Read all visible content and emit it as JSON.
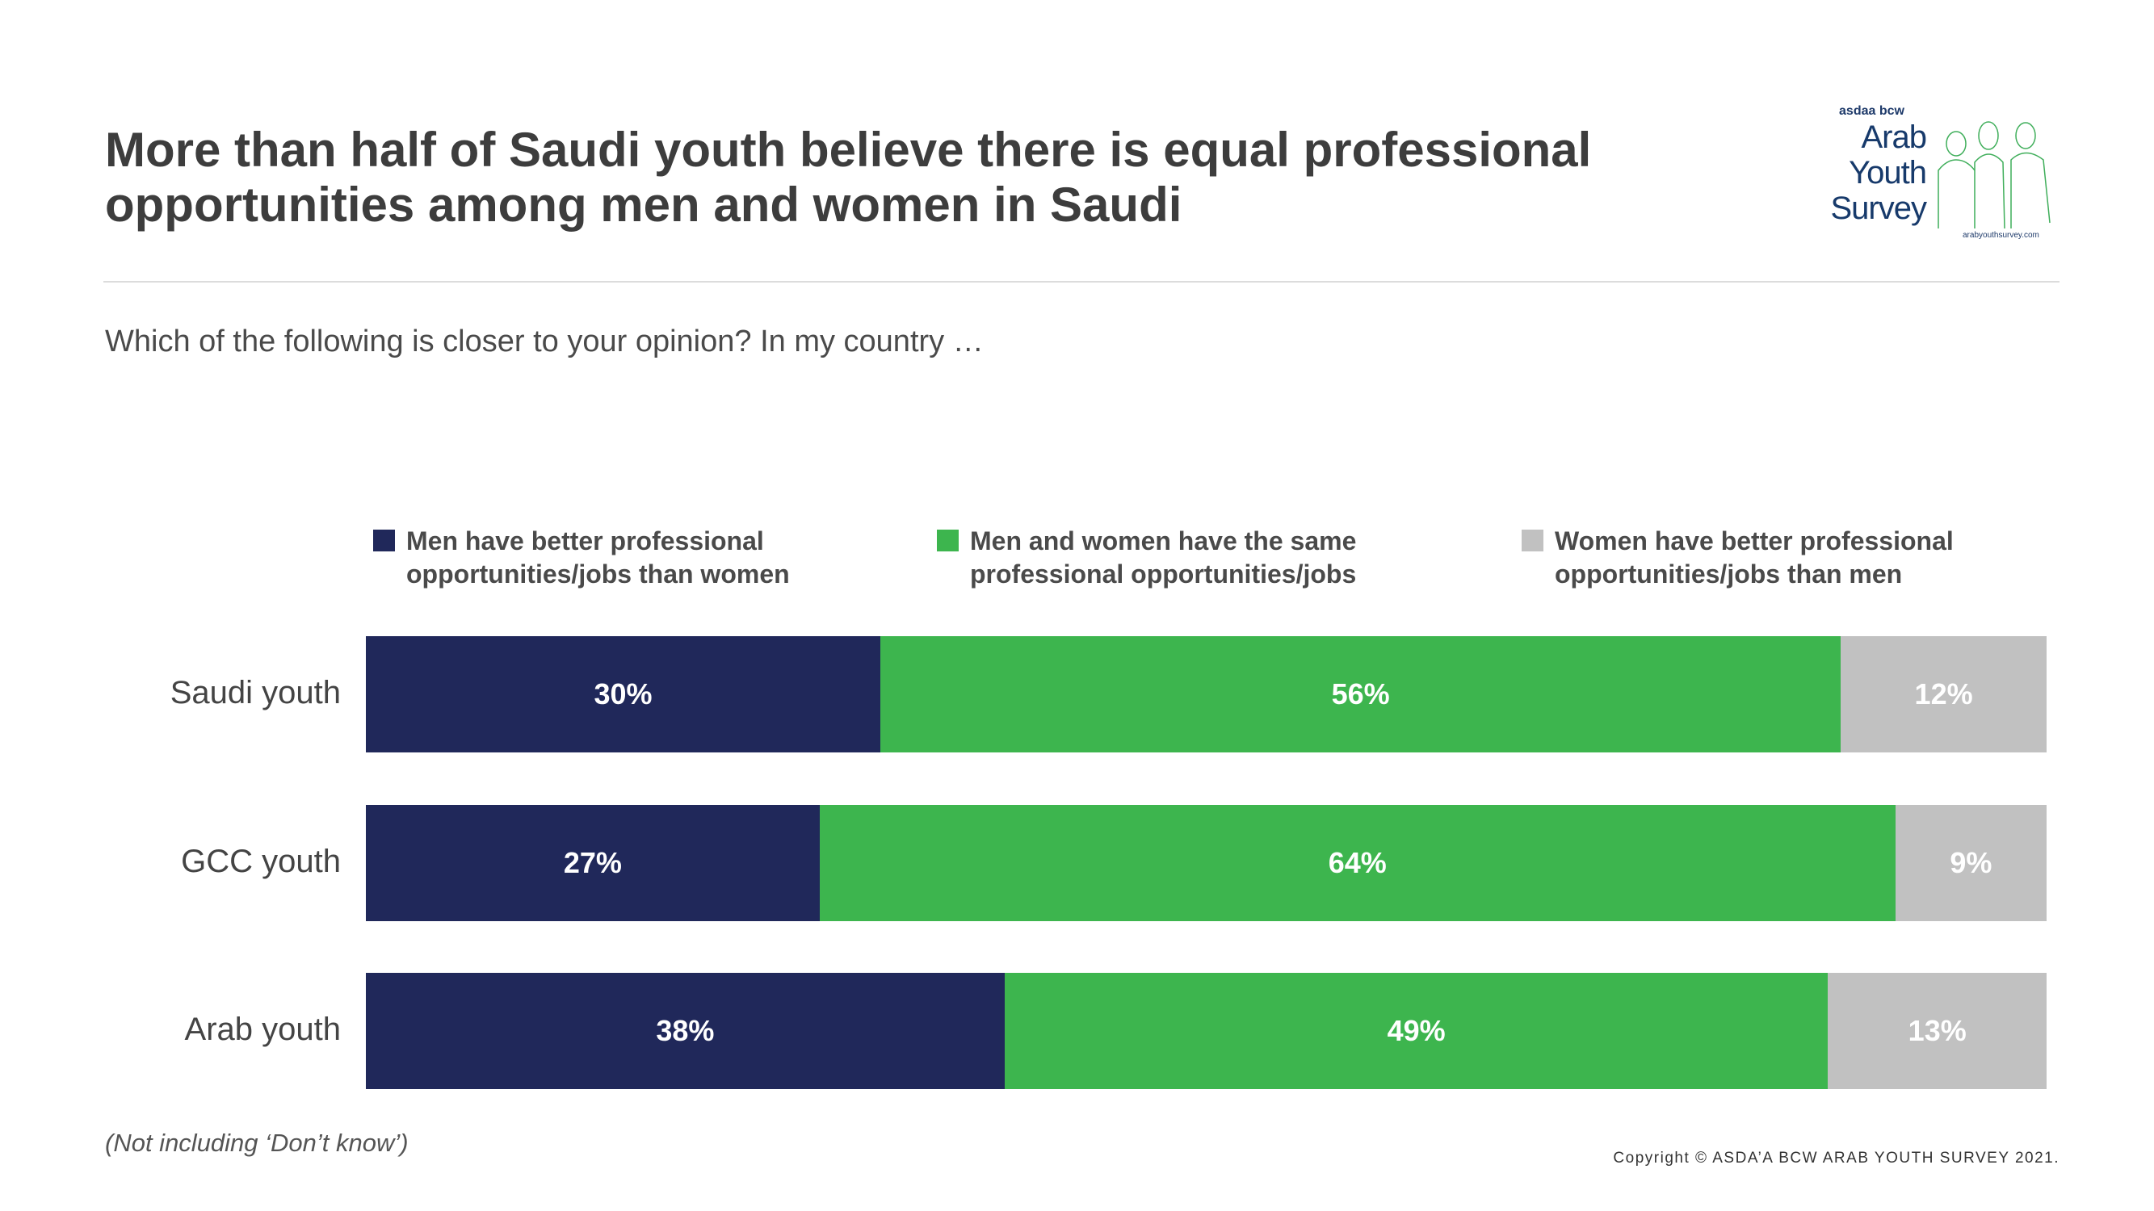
{
  "title": "More than half of Saudi youth believe there is equal professional opportunities among men and women in Saudi",
  "question": "Which of the following is closer to your opinion? In my country …",
  "logo": {
    "brand": "asdaa bcw",
    "line1": "Arab",
    "line2": "Youth",
    "line3": "Survey",
    "url": "arabyouthsurvey.com"
  },
  "footnote": "(Not including ‘Don’t know’)",
  "copyright": "Copyright © ASDA’A BCW ARAB YOUTH SURVEY 2021.",
  "chart_data": {
    "type": "bar",
    "orientation": "horizontal",
    "stacked": true,
    "categories": [
      "Saudi youth",
      "GCC youth",
      "Arab youth"
    ],
    "series": [
      {
        "name": "Men have better professional opportunities/jobs than women",
        "color": "#20285a",
        "values": [
          30,
          27,
          38
        ],
        "labels": [
          "30%",
          "27%",
          "38%"
        ]
      },
      {
        "name": "Men and women have the same professional opportunities/jobs",
        "color": "#3db54e",
        "values": [
          56,
          64,
          49
        ],
        "labels": [
          "56%",
          "64%",
          "49%"
        ]
      },
      {
        "name": "Women have better professional opportunities/jobs than men",
        "color": "#c1c1c1",
        "values": [
          12,
          9,
          13
        ],
        "labels": [
          "12%",
          "9%",
          "13%"
        ]
      }
    ],
    "legend_position": "top",
    "grid": false
  }
}
